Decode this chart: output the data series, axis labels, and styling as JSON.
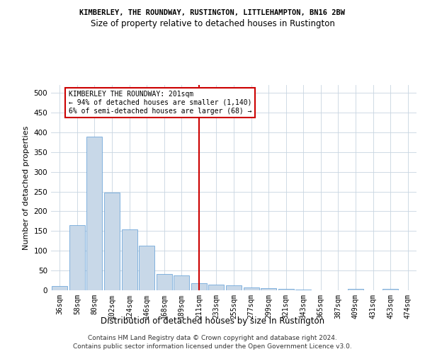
{
  "title": "KIMBERLEY, THE ROUNDWAY, RUSTINGTON, LITTLEHAMPTON, BN16 2BW",
  "subtitle": "Size of property relative to detached houses in Rustington",
  "xlabel": "Distribution of detached houses by size in Rustington",
  "ylabel": "Number of detached properties",
  "categories": [
    "36sqm",
    "58sqm",
    "80sqm",
    "102sqm",
    "124sqm",
    "146sqm",
    "168sqm",
    "189sqm",
    "211sqm",
    "233sqm",
    "255sqm",
    "277sqm",
    "299sqm",
    "321sqm",
    "343sqm",
    "365sqm",
    "387sqm",
    "409sqm",
    "431sqm",
    "453sqm",
    "474sqm"
  ],
  "values": [
    10,
    165,
    390,
    247,
    155,
    113,
    42,
    38,
    18,
    15,
    13,
    8,
    6,
    4,
    2,
    0,
    0,
    3,
    0,
    4,
    0
  ],
  "bar_color": "#c8d8e8",
  "bar_edge_color": "#5b9bd5",
  "vline_x": 8,
  "vline_color": "#cc0000",
  "annotation_line1": "KIMBERLEY THE ROUNDWAY: 201sqm",
  "annotation_line2": "← 94% of detached houses are smaller (1,140)",
  "annotation_line3": "6% of semi-detached houses are larger (68) →",
  "annotation_box_color": "#ffffff",
  "annotation_box_edge": "#cc0000",
  "ylim": [
    0,
    520
  ],
  "yticks": [
    0,
    50,
    100,
    150,
    200,
    250,
    300,
    350,
    400,
    450,
    500
  ],
  "background_color": "#ffffff",
  "grid_color": "#c8d4e0",
  "footer_line1": "Contains HM Land Registry data © Crown copyright and database right 2024.",
  "footer_line2": "Contains public sector information licensed under the Open Government Licence v3.0."
}
